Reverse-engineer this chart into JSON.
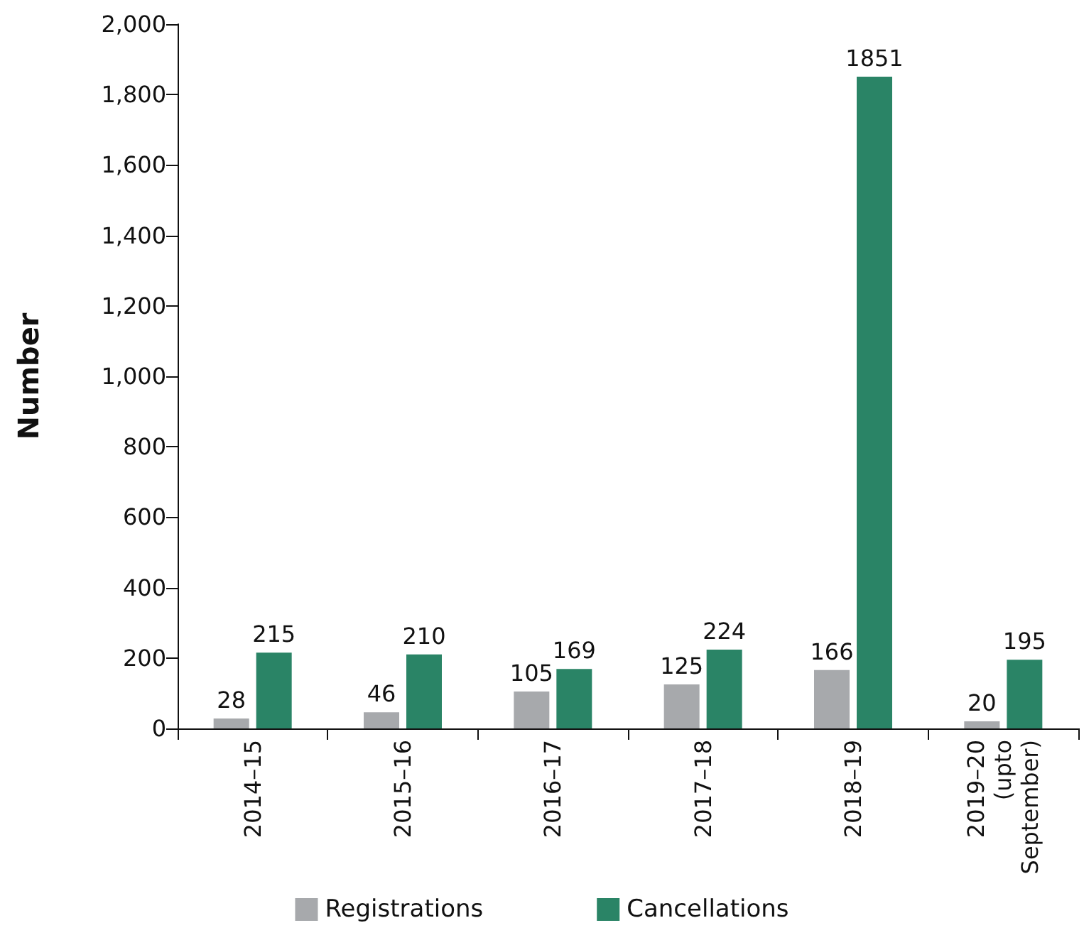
{
  "chart_data": {
    "type": "bar",
    "ylabel": "Number",
    "categories": [
      "2014–15",
      "2015–16",
      "2016–17",
      "2017–18",
      "2018–19",
      "2019–20 (upto September)"
    ],
    "series": [
      {
        "name": "Registrations",
        "color": "#a7a9ac",
        "values": [
          28,
          46,
          105,
          125,
          166,
          20
        ]
      },
      {
        "name": "Cancellations",
        "color": "#2a8466",
        "values": [
          215,
          210,
          169,
          224,
          1851,
          195
        ]
      }
    ],
    "ylim": [
      0,
      2000
    ],
    "yticks": [
      0,
      200,
      400,
      600,
      800,
      {
        "value": 1000,
        "label": "1,000"
      },
      {
        "value": 1200,
        "label": "1,200"
      },
      {
        "value": 1400,
        "label": "1,400"
      },
      {
        "value": 1600,
        "label": "1,600"
      },
      {
        "value": 1800,
        "label": "1,800"
      },
      {
        "value": 2000,
        "label": "2,000"
      }
    ],
    "grid": false,
    "legend": "bottom",
    "data_labels": true
  }
}
